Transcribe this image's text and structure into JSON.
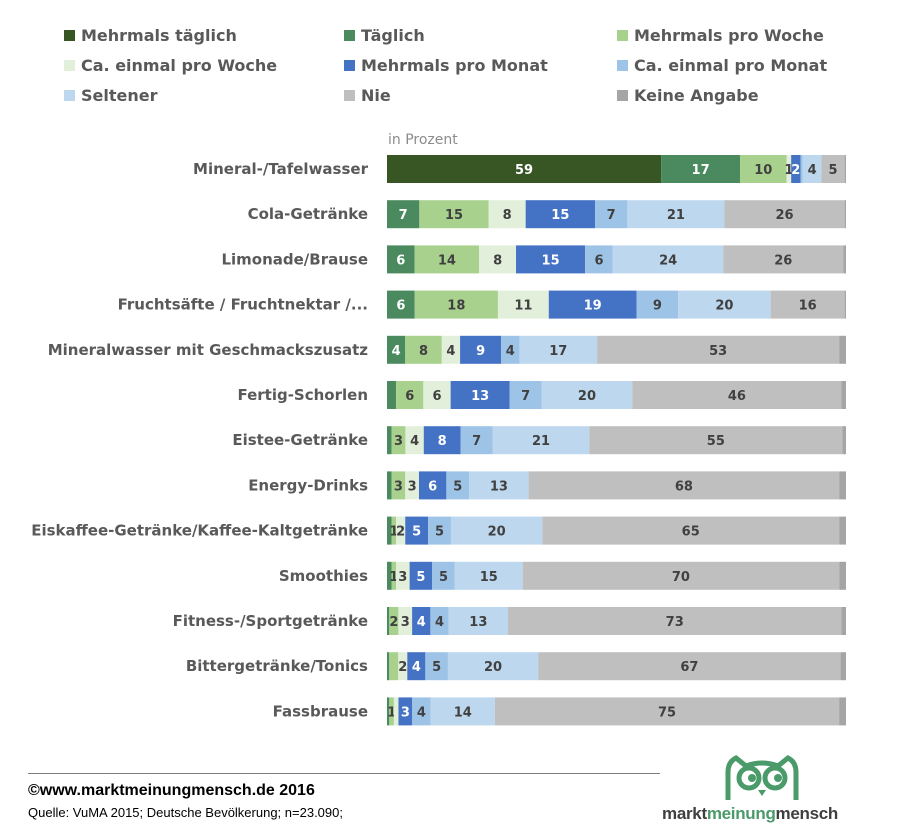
{
  "chart_data": {
    "type": "bar",
    "orientation": "horizontal",
    "stacked": "percent",
    "unit_label": "in Prozent",
    "xlim": [
      0,
      100
    ],
    "legend_position": "top",
    "series": [
      {
        "name": "Mehrmals täglich",
        "color": "#375623",
        "values": [
          59,
          0,
          0,
          0,
          0,
          0,
          0,
          0,
          0,
          0,
          0,
          0,
          0
        ]
      },
      {
        "name": "Täglich",
        "color": "#4a8a5e",
        "values": [
          17,
          7,
          6,
          6,
          4,
          2,
          1,
          1,
          1,
          1,
          0.5,
          0.5,
          0.5
        ]
      },
      {
        "name": "Mehrmals pro Woche",
        "color": "#a9d18e",
        "values": [
          10,
          15,
          14,
          18,
          8,
          6,
          3,
          3,
          1,
          1,
          2,
          2,
          1
        ]
      },
      {
        "name": "Ca. einmal pro Woche",
        "color": "#e2efda",
        "values": [
          1,
          8,
          8,
          11,
          4,
          6,
          4,
          3,
          2,
          3,
          3,
          2,
          1
        ]
      },
      {
        "name": "Mehrmals pro Monat",
        "color": "#4472c4",
        "values": [
          2,
          15,
          15,
          19,
          9,
          13,
          8,
          6,
          5,
          5,
          4,
          4,
          3
        ]
      },
      {
        "name": "Ca. einmal pro Monat",
        "color": "#9dc3e6",
        "values": [
          0.5,
          7,
          6,
          9,
          4,
          7,
          7,
          5,
          5,
          5,
          4,
          5,
          4
        ]
      },
      {
        "name": "Seltener",
        "color": "#bdd7ee",
        "values": [
          4,
          21,
          24,
          20,
          17,
          20,
          21,
          13,
          20,
          15,
          13,
          20,
          14
        ]
      },
      {
        "name": "Nie",
        "color": "#bfbfbf",
        "values": [
          5,
          26,
          26,
          16,
          53,
          46,
          55,
          68,
          65,
          70,
          73,
          67,
          75
        ]
      },
      {
        "name": "Keine Angabe",
        "color": "#a5a5a5",
        "values": [
          0.3,
          0.3,
          0.6,
          0.3,
          1.5,
          1,
          0.8,
          1.5,
          1.5,
          1.5,
          1,
          1.2,
          1.5
        ]
      }
    ],
    "labels": [
      [
        "59",
        "",
        "",
        "",
        "",
        "",
        "",
        "",
        ""
      ],
      [
        "",
        "7",
        "15",
        "8",
        "15",
        "7",
        "21",
        "26",
        ""
      ],
      [
        "",
        "6",
        "14",
        "8",
        "15",
        "6",
        "24",
        "26",
        ""
      ],
      [
        "",
        "6",
        "18",
        "11",
        "19",
        "9",
        "20",
        "16",
        ""
      ],
      [
        "",
        "4",
        "8",
        "4",
        "9",
        "4",
        "17",
        "53",
        ""
      ],
      [
        "",
        "",
        "6",
        "6",
        "13",
        "7",
        "20",
        "46",
        ""
      ],
      [
        "",
        "",
        "3",
        "4",
        "8",
        "7",
        "21",
        "55",
        ""
      ],
      [
        "",
        "",
        "3",
        "3",
        "6",
        "5",
        "13",
        "68",
        ""
      ],
      [
        "",
        "",
        "1",
        "2",
        "5",
        "5",
        "20",
        "65",
        ""
      ],
      [
        "",
        "",
        "1",
        "3",
        "5",
        "5",
        "15",
        "70",
        ""
      ],
      [
        "",
        "",
        "2",
        "3",
        "4",
        "4",
        "13",
        "73",
        ""
      ],
      [
        "",
        "",
        "",
        "2",
        "4",
        "5",
        "20",
        "67",
        ""
      ],
      [
        "",
        "",
        "1",
        "",
        "3",
        "4",
        "14",
        "75",
        ""
      ]
    ],
    "label_override_row0": [
      "59",
      "17",
      "10",
      "1",
      "2",
      "",
      "4",
      "5",
      ""
    ],
    "categories": [
      "Mineral-/Tafelwasser",
      "Cola-Getränke",
      "Limonade/Brause",
      "Fruchtsäfte / Fruchtnektar /...",
      "Mineralwasser mit Geschmackszusatz",
      "Fertig-Schorlen",
      "Eistee-Getränke",
      "Energy-Drinks",
      "Eiskaffee-Getränke/Kaffee-Kaltgetränke",
      "Smoothies",
      "Fitness-/Sportgetränke",
      "Bittergetränke/Tonics",
      "Fassbrause"
    ],
    "white_label_series": [
      "Mehrmals täglich",
      "Täglich",
      "Mehrmals pro Monat"
    ]
  },
  "footer": {
    "copyright": "©www.marktmeinungmensch.de 2016",
    "source": "Quelle: VuMA 2015; Deutsche Bevölkerung; n=23.090;"
  },
  "logo": {
    "part1": "markt",
    "part2": "meinung",
    "part3": "mensch",
    "accent_color": "#4a9a6a",
    "dark_color": "#3f3f3f"
  }
}
